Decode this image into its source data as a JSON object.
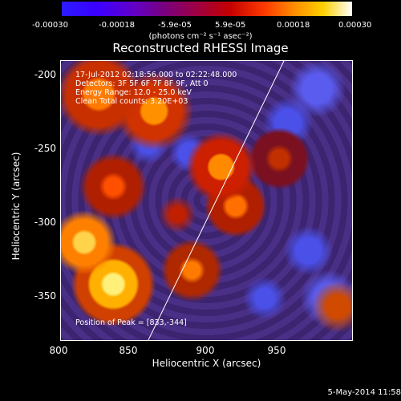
{
  "colorbar": {
    "ticks": [
      "-0.00030",
      "-0.00018",
      "-5.9e-05",
      "5.9e-05",
      "0.00018",
      "0.00030"
    ],
    "unit": "(photons cm⁻² s⁻¹ asec⁻²)"
  },
  "plot": {
    "title": "Reconstructed RHESSI Image",
    "info": [
      "17-Jul-2012 02:18:56.000 to 02:22:48.000",
      "Detectors: 3F 5F 6F 7F 8F 9F, Att 0",
      "Energy Range: 12.0 - 25.0 keV",
      "Clean    Total counts: 3.20E+03"
    ],
    "peak": "Position of Peak = [833,-344]",
    "xaxis": {
      "label": "Heliocentric X (arcsec)",
      "ticks": [
        "800",
        "850",
        "900",
        "950"
      ]
    },
    "yaxis": {
      "label": "Heliocentric Y (arcsec)",
      "ticks": [
        "-200",
        "-250",
        "-300",
        "-350"
      ]
    }
  },
  "timestamp": "5-May-2014 11:58"
}
